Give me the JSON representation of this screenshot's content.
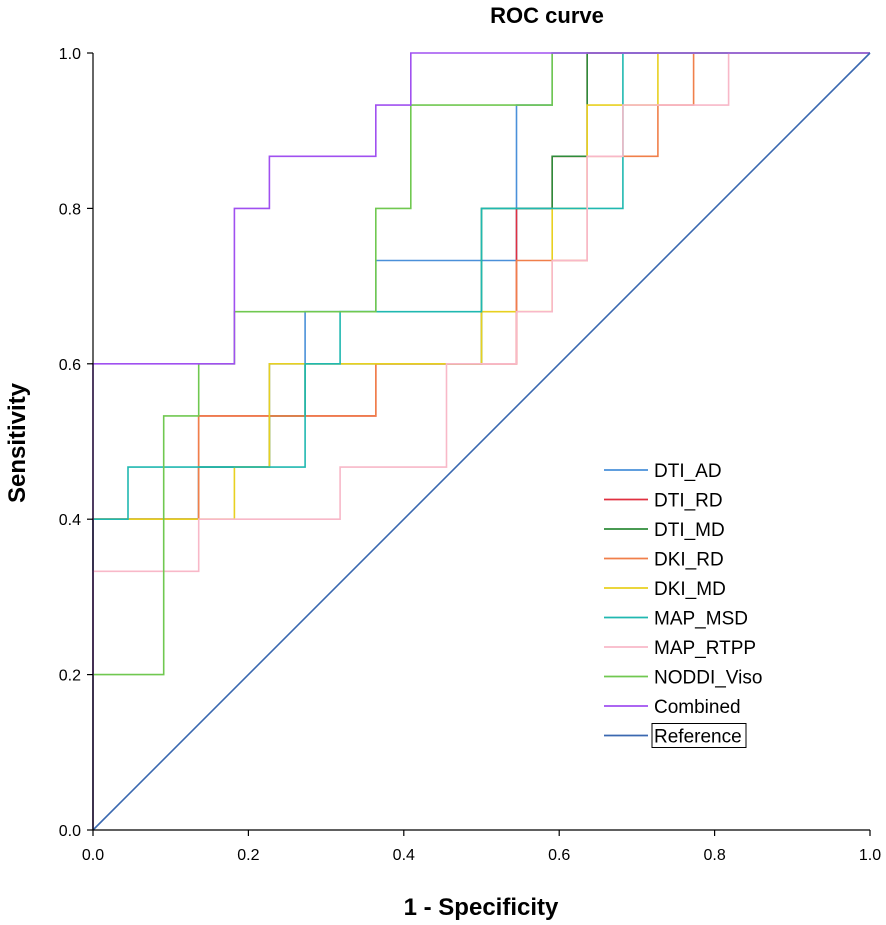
{
  "chart_data": {
    "type": "line",
    "title": "ROC curve",
    "xlabel": "1 - Specificity",
    "ylabel": "Sensitivity",
    "xlim": [
      0.0,
      1.0
    ],
    "ylim": [
      0.0,
      1.0
    ],
    "xticks": [
      "0.0",
      "0.2",
      "0.4",
      "0.6",
      "0.8",
      "1.0"
    ],
    "yticks": [
      "0.0",
      "0.2",
      "0.4",
      "0.6",
      "0.8",
      "1.0"
    ],
    "grid": false,
    "legend_position": "right-bottom",
    "series": [
      {
        "name": "DTI_AD",
        "color": "#4a90d9",
        "points": [
          [
            0,
            0
          ],
          [
            0,
            0.4
          ],
          [
            0.136,
            0.4
          ],
          [
            0.136,
            0.467
          ],
          [
            0.227,
            0.467
          ],
          [
            0.227,
            0.6
          ],
          [
            0.273,
            0.6
          ],
          [
            0.273,
            0.667
          ],
          [
            0.364,
            0.667
          ],
          [
            0.364,
            0.733
          ],
          [
            0.545,
            0.733
          ],
          [
            0.545,
            0.933
          ],
          [
            0.591,
            0.933
          ],
          [
            0.591,
            1
          ],
          [
            1,
            1
          ]
        ]
      },
      {
        "name": "DTI_RD",
        "color": "#e03040",
        "points": [
          [
            0,
            0
          ],
          [
            0,
            0.4
          ],
          [
            0.136,
            0.4
          ],
          [
            0.136,
            0.533
          ],
          [
            0.364,
            0.533
          ],
          [
            0.364,
            0.6
          ],
          [
            0.545,
            0.6
          ],
          [
            0.545,
            0.733
          ],
          [
            0.545,
            0.8
          ],
          [
            0.591,
            0.8
          ],
          [
            0.591,
            0.867
          ],
          [
            0.636,
            0.867
          ],
          [
            0.636,
            1
          ],
          [
            1,
            1
          ]
        ]
      },
      {
        "name": "DTI_MD",
        "color": "#2e8b3a",
        "points": [
          [
            0,
            0
          ],
          [
            0,
            0.4
          ],
          [
            0.136,
            0.4
          ],
          [
            0.136,
            0.467
          ],
          [
            0.227,
            0.467
          ],
          [
            0.227,
            0.533
          ],
          [
            0.273,
            0.533
          ],
          [
            0.273,
            0.6
          ],
          [
            0.5,
            0.6
          ],
          [
            0.5,
            0.8
          ],
          [
            0.545,
            0.8
          ],
          [
            0.545,
            0.8
          ],
          [
            0.591,
            0.8
          ],
          [
            0.591,
            0.867
          ],
          [
            0.636,
            0.867
          ],
          [
            0.636,
            1
          ],
          [
            1,
            1
          ]
        ]
      },
      {
        "name": "DKI_RD",
        "color": "#f07f4a",
        "points": [
          [
            0,
            0
          ],
          [
            0,
            0.4
          ],
          [
            0.136,
            0.4
          ],
          [
            0.136,
            0.533
          ],
          [
            0.364,
            0.533
          ],
          [
            0.364,
            0.6
          ],
          [
            0.545,
            0.6
          ],
          [
            0.545,
            0.733
          ],
          [
            0.636,
            0.733
          ],
          [
            0.636,
            0.867
          ],
          [
            0.727,
            0.867
          ],
          [
            0.727,
            0.933
          ],
          [
            0.773,
            0.933
          ],
          [
            0.773,
            1
          ],
          [
            1,
            1
          ]
        ]
      },
      {
        "name": "DKI_MD",
        "color": "#e8d020",
        "points": [
          [
            0,
            0
          ],
          [
            0,
            0.4
          ],
          [
            0.182,
            0.4
          ],
          [
            0.182,
            0.467
          ],
          [
            0.227,
            0.467
          ],
          [
            0.227,
            0.6
          ],
          [
            0.5,
            0.6
          ],
          [
            0.5,
            0.667
          ],
          [
            0.591,
            0.667
          ],
          [
            0.591,
            0.8
          ],
          [
            0.636,
            0.8
          ],
          [
            0.636,
            0.933
          ],
          [
            0.727,
            0.933
          ],
          [
            0.727,
            1
          ],
          [
            1,
            1
          ]
        ]
      },
      {
        "name": "MAP_MSD",
        "color": "#20b8b0",
        "points": [
          [
            0,
            0
          ],
          [
            0,
            0.4
          ],
          [
            0.045,
            0.4
          ],
          [
            0.045,
            0.467
          ],
          [
            0.273,
            0.467
          ],
          [
            0.273,
            0.6
          ],
          [
            0.318,
            0.6
          ],
          [
            0.318,
            0.667
          ],
          [
            0.5,
            0.667
          ],
          [
            0.5,
            0.8
          ],
          [
            0.682,
            0.8
          ],
          [
            0.682,
            1
          ],
          [
            1,
            1
          ]
        ]
      },
      {
        "name": "MAP_RTPP",
        "color": "#f8b8c8",
        "points": [
          [
            0,
            0
          ],
          [
            0,
            0.333
          ],
          [
            0.136,
            0.333
          ],
          [
            0.136,
            0.4
          ],
          [
            0.318,
            0.4
          ],
          [
            0.318,
            0.467
          ],
          [
            0.455,
            0.467
          ],
          [
            0.455,
            0.6
          ],
          [
            0.545,
            0.6
          ],
          [
            0.545,
            0.667
          ],
          [
            0.591,
            0.667
          ],
          [
            0.591,
            0.733
          ],
          [
            0.636,
            0.733
          ],
          [
            0.636,
            0.867
          ],
          [
            0.682,
            0.867
          ],
          [
            0.682,
            0.933
          ],
          [
            0.818,
            0.933
          ],
          [
            0.818,
            1
          ],
          [
            1,
            1
          ]
        ]
      },
      {
        "name": "NODDI_Viso",
        "color": "#70c850",
        "points": [
          [
            0,
            0
          ],
          [
            0,
            0.2
          ],
          [
            0.091,
            0.2
          ],
          [
            0.091,
            0.533
          ],
          [
            0.136,
            0.533
          ],
          [
            0.136,
            0.6
          ],
          [
            0.182,
            0.6
          ],
          [
            0.182,
            0.667
          ],
          [
            0.364,
            0.667
          ],
          [
            0.364,
            0.8
          ],
          [
            0.409,
            0.8
          ],
          [
            0.409,
            0.933
          ],
          [
            0.591,
            0.933
          ],
          [
            0.591,
            1
          ],
          [
            1,
            1
          ]
        ]
      },
      {
        "name": "Combined",
        "color": "#a050f0",
        "points": [
          [
            0,
            0
          ],
          [
            0,
            0.6
          ],
          [
            0.182,
            0.6
          ],
          [
            0.182,
            0.8
          ],
          [
            0.227,
            0.8
          ],
          [
            0.227,
            0.867
          ],
          [
            0.364,
            0.867
          ],
          [
            0.364,
            0.933
          ],
          [
            0.409,
            0.933
          ],
          [
            0.409,
            1
          ],
          [
            1,
            1
          ]
        ]
      },
      {
        "name": "Reference",
        "color": "#3a68b0",
        "points": [
          [
            0,
            0
          ],
          [
            1,
            1
          ]
        ]
      }
    ]
  }
}
